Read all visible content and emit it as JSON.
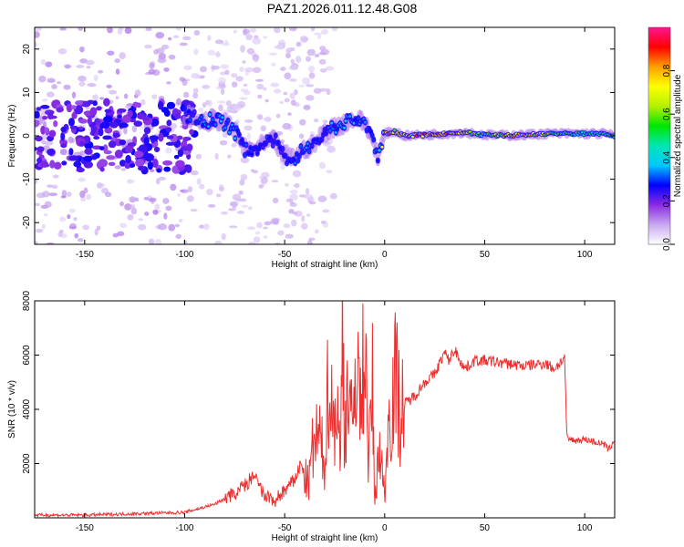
{
  "title": "PAZ1.2026.011.12.48.G08",
  "chart_data": [
    {
      "type": "heatmap",
      "name": "spectrogram",
      "xlabel": "Height of straight line (km)",
      "ylabel": "Frequency (Hz)",
      "xlim": [
        -175,
        115
      ],
      "ylim": [
        -25,
        25
      ],
      "xticks": [
        -150,
        -100,
        -50,
        0,
        50,
        100
      ],
      "yticks": [
        -20,
        -10,
        0,
        10,
        20
      ],
      "colorbar": {
        "label": "Normalized spectral amplitude",
        "range": [
          0,
          1
        ],
        "ticks": [
          "0.0",
          "0.2",
          "0.4",
          "0.6",
          "0.8"
        ],
        "colors": [
          "#ffffff",
          "#c8a8f0",
          "#8a2be2",
          "#0000ff",
          "#00c8ff",
          "#00e6b4",
          "#00e600",
          "#b4f000",
          "#ffff00",
          "#ffa000",
          "#ff0000",
          "#ff1493"
        ]
      },
      "ridge": {
        "x": [
          -100,
          -95,
          -90,
          -85,
          -80,
          -75,
          -70,
          -65,
          -60,
          -55,
          -50,
          -45,
          -40,
          -35,
          -30,
          -25,
          -20,
          -15,
          -10,
          -5,
          -3,
          0,
          5,
          10,
          20,
          30,
          40,
          50,
          60,
          70,
          80,
          90,
          100,
          110,
          115
        ],
        "y": [
          5,
          4,
          3,
          4,
          3,
          1,
          -3,
          -3,
          -2,
          -1,
          -5,
          -5,
          -3,
          -2,
          1,
          2,
          3,
          4,
          3,
          -2,
          -5,
          0.5,
          1,
          0,
          0.2,
          0.5,
          0.8,
          0.2,
          0.1,
          0.2,
          0.5,
          0.5,
          0.5,
          0.5,
          0
        ],
        "amplitude": [
          0.3,
          0.3,
          0.35,
          0.35,
          0.4,
          0.35,
          0.3,
          0.3,
          0.3,
          0.3,
          0.3,
          0.32,
          0.35,
          0.32,
          0.32,
          0.35,
          0.4,
          0.38,
          0.35,
          0.35,
          0.35,
          0.9,
          0.8,
          0.85,
          0.9,
          0.95,
          0.8,
          0.6,
          0.8,
          0.9,
          0.7,
          0.6,
          0.55,
          0.6,
          0.55
        ]
      }
    },
    {
      "type": "line",
      "name": "snr",
      "xlabel": "Height of straight line (km)",
      "ylabel": "SNR (10 * v/v)",
      "xlim": [
        -175,
        115
      ],
      "ylim": [
        0,
        8000
      ],
      "xticks": [
        -150,
        -100,
        -50,
        0,
        50,
        100
      ],
      "yticks": [
        2000,
        4000,
        6000,
        8000
      ],
      "color": "#ee2e2e",
      "series": {
        "x": [
          -175,
          -150,
          -125,
          -110,
          -100,
          -95,
          -90,
          -85,
          -80,
          -75,
          -70,
          -65,
          -60,
          -55,
          -50,
          -45,
          -42,
          -40,
          -38,
          -36,
          -33,
          -30,
          -28,
          -26,
          -24,
          -22,
          -21,
          -20,
          -18,
          -16,
          -14,
          -12,
          -10,
          -8,
          -6,
          -5,
          -3,
          0,
          2,
          5,
          8,
          10,
          15,
          20,
          25,
          30,
          32,
          35,
          40,
          45,
          50,
          60,
          70,
          80,
          85,
          90,
          91,
          92,
          95,
          100,
          105,
          110,
          112,
          115
        ],
        "y": [
          100,
          100,
          150,
          180,
          200,
          300,
          400,
          500,
          700,
          900,
          1200,
          1500,
          800,
          600,
          1000,
          1400,
          2000,
          1500,
          1200,
          2500,
          3000,
          2000,
          5400,
          3500,
          4200,
          2000,
          8000,
          3000,
          5500,
          2500,
          7000,
          3500,
          7200,
          2000,
          5000,
          300,
          2800,
          900,
          3500,
          5300,
          4000,
          4200,
          4500,
          5000,
          5300,
          6100,
          5800,
          6200,
          5500,
          5800,
          5800,
          5700,
          5600,
          5700,
          5500,
          5900,
          3000,
          2900,
          2850,
          2900,
          2800,
          2700,
          2500,
          2900
        ]
      }
    }
  ]
}
